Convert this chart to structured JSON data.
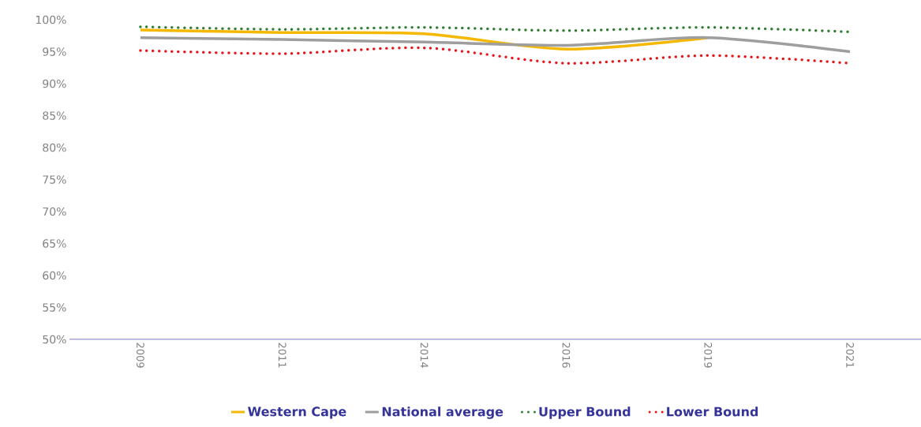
{
  "chart_data": {
    "type": "line",
    "categories": [
      "2009",
      "2011",
      "2014",
      "2016",
      "2019",
      "2021"
    ],
    "series": [
      {
        "name": "Western Cape",
        "color": "#f5b800",
        "line_style": "solid",
        "values": [
          98.4,
          98.0,
          97.8,
          95.4,
          97.2,
          null
        ]
      },
      {
        "name": "National average",
        "color": "#9e9e9e",
        "line_style": "solid",
        "values": [
          97.2,
          96.9,
          96.5,
          96.0,
          97.2,
          95.0
        ]
      },
      {
        "name": "Upper Bound",
        "color": "#2e7d32",
        "line_style": "dotted",
        "values": [
          98.9,
          98.5,
          98.8,
          98.3,
          98.8,
          98.1
        ]
      },
      {
        "name": "Lower Bound",
        "color": "#e8141b",
        "line_style": "dotted",
        "values": [
          95.2,
          94.7,
          95.6,
          93.2,
          94.4,
          93.2
        ]
      }
    ],
    "ylim": [
      50,
      100
    ],
    "yticks": [
      {
        "value": 50,
        "label": "50%"
      },
      {
        "value": 55,
        "label": "55%"
      },
      {
        "value": 60,
        "label": "60%"
      },
      {
        "value": 65,
        "label": "65%"
      },
      {
        "value": 70,
        "label": "70%"
      },
      {
        "value": 75,
        "label": "75%"
      },
      {
        "value": 80,
        "label": "80%"
      },
      {
        "value": 85,
        "label": "85%"
      },
      {
        "value": 90,
        "label": "90%"
      },
      {
        "value": 95,
        "label": "95%"
      },
      {
        "value": 100,
        "label": "100%"
      }
    ],
    "grid": false,
    "legend": "bottom",
    "marker": "none"
  }
}
